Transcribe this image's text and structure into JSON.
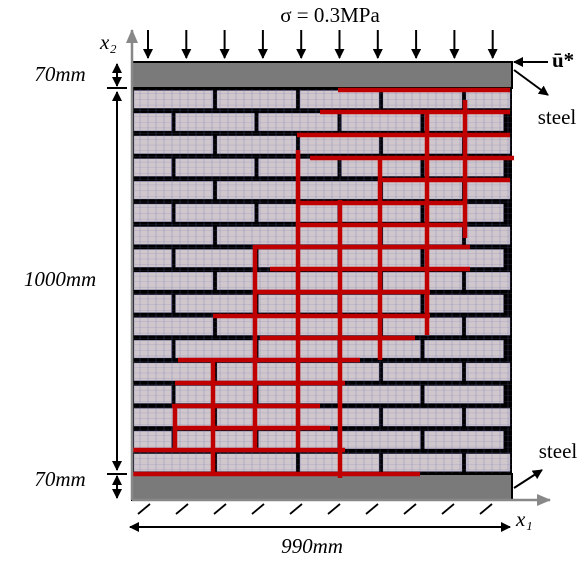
{
  "load": {
    "label": "σ = 0.3MPa"
  },
  "axes": {
    "vertical": "x₂",
    "horizontal": "x₁"
  },
  "displacement": {
    "label": "ū*"
  },
  "plates": {
    "top": "steel",
    "bottom": "steel"
  },
  "dimensions": {
    "top_plate": "70mm",
    "wall_height": "1000mm",
    "bottom_plate": "70mm",
    "width": "990mm"
  }
}
